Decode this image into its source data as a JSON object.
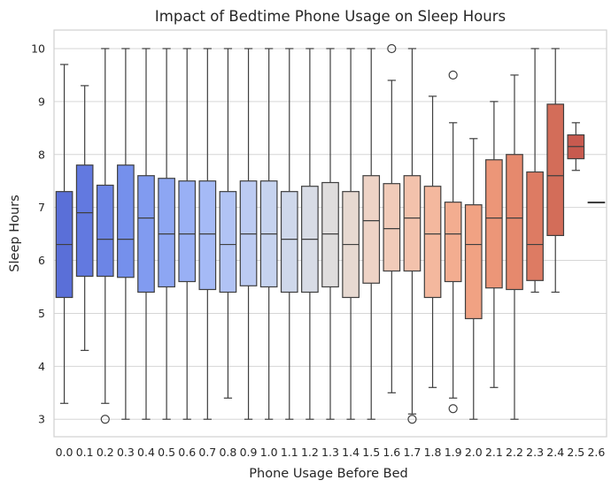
{
  "chart_data": {
    "type": "box",
    "title": "Impact of Bedtime Phone Usage on Sleep Hours",
    "xlabel": "Phone Usage Before Bed",
    "ylabel": "Sleep Hours",
    "ylim": [
      2.67,
      10.35
    ],
    "yticks": [
      3,
      4,
      5,
      6,
      7,
      8,
      9,
      10
    ],
    "grid": true,
    "palette": "coolwarm",
    "categories": [
      "0.0",
      "0.1",
      "0.2",
      "0.3",
      "0.4",
      "0.5",
      "0.6",
      "0.7",
      "0.8",
      "0.9",
      "1.0",
      "1.1",
      "1.2",
      "1.3",
      "1.4",
      "1.5",
      "1.6",
      "1.7",
      "1.8",
      "1.9",
      "2.0",
      "2.1",
      "2.2",
      "2.3",
      "2.4",
      "2.5",
      "2.6"
    ],
    "boxes": [
      {
        "category": "0.0",
        "q1": 5.3,
        "median": 6.3,
        "q3": 7.3,
        "whisker_low": 3.3,
        "whisker_high": 9.7,
        "outliers": [],
        "color": "#5a6fd8"
      },
      {
        "category": "0.1",
        "q1": 5.7,
        "median": 6.9,
        "q3": 7.8,
        "whisker_low": 4.3,
        "whisker_high": 9.3,
        "outliers": [],
        "color": "#6279e0"
      },
      {
        "category": "0.2",
        "q1": 5.7,
        "median": 6.4,
        "q3": 7.42,
        "whisker_low": 3.3,
        "whisker_high": 10.0,
        "outliers": [
          3.0
        ],
        "color": "#6c85e6"
      },
      {
        "category": "0.3",
        "q1": 5.68,
        "median": 6.4,
        "q3": 7.8,
        "whisker_low": 3.0,
        "whisker_high": 10.0,
        "outliers": [],
        "color": "#7590ec"
      },
      {
        "category": "0.4",
        "q1": 5.4,
        "median": 6.8,
        "q3": 7.6,
        "whisker_low": 3.0,
        "whisker_high": 10.0,
        "outliers": [],
        "color": "#819bf0"
      },
      {
        "category": "0.5",
        "q1": 5.5,
        "median": 6.5,
        "q3": 7.55,
        "whisker_low": 3.0,
        "whisker_high": 10.0,
        "outliers": [],
        "color": "#8da6f3"
      },
      {
        "category": "0.6",
        "q1": 5.6,
        "median": 6.5,
        "q3": 7.5,
        "whisker_low": 3.0,
        "whisker_high": 10.0,
        "outliers": [],
        "color": "#99b0f5"
      },
      {
        "category": "0.7",
        "q1": 5.45,
        "median": 6.5,
        "q3": 7.5,
        "whisker_low": 3.0,
        "whisker_high": 10.0,
        "outliers": [],
        "color": "#a5baf6"
      },
      {
        "category": "0.8",
        "q1": 5.4,
        "median": 6.3,
        "q3": 7.3,
        "whisker_low": 3.4,
        "whisker_high": 10.0,
        "outliers": [],
        "color": "#b1c3f5"
      },
      {
        "category": "0.9",
        "q1": 5.52,
        "median": 6.5,
        "q3": 7.5,
        "whisker_low": 3.0,
        "whisker_high": 10.0,
        "outliers": [],
        "color": "#bccbf2"
      },
      {
        "category": "1.0",
        "q1": 5.5,
        "median": 6.5,
        "q3": 7.5,
        "whisker_low": 3.0,
        "whisker_high": 10.0,
        "outliers": [],
        "color": "#c6d3ef"
      },
      {
        "category": "1.1",
        "q1": 5.4,
        "median": 6.4,
        "q3": 7.3,
        "whisker_low": 3.0,
        "whisker_high": 10.0,
        "outliers": [],
        "color": "#cfd8eb"
      },
      {
        "category": "1.2",
        "q1": 5.4,
        "median": 6.4,
        "q3": 7.4,
        "whisker_low": 3.0,
        "whisker_high": 10.0,
        "outliers": [],
        "color": "#d8dce6"
      },
      {
        "category": "1.3",
        "q1": 5.5,
        "median": 6.5,
        "q3": 7.47,
        "whisker_low": 3.0,
        "whisker_high": 10.0,
        "outliers": [],
        "color": "#dfdddd"
      },
      {
        "category": "1.4",
        "q1": 5.3,
        "median": 6.3,
        "q3": 7.3,
        "whisker_low": 3.0,
        "whisker_high": 10.0,
        "outliers": [],
        "color": "#e7d9d1"
      },
      {
        "category": "1.5",
        "q1": 5.57,
        "median": 6.75,
        "q3": 7.6,
        "whisker_low": 3.0,
        "whisker_high": 10.0,
        "outliers": [],
        "color": "#eed3c6"
      },
      {
        "category": "1.6",
        "q1": 5.8,
        "median": 6.6,
        "q3": 7.45,
        "whisker_low": 3.5,
        "whisker_high": 9.4,
        "outliers": [
          10.0
        ],
        "color": "#f1cbb9"
      },
      {
        "category": "1.7",
        "q1": 5.8,
        "median": 6.8,
        "q3": 7.6,
        "whisker_low": 3.1,
        "whisker_high": 10.0,
        "outliers": [
          3.0
        ],
        "color": "#f3c2ac"
      },
      {
        "category": "1.8",
        "q1": 5.3,
        "median": 6.5,
        "q3": 7.4,
        "whisker_low": 3.6,
        "whisker_high": 9.1,
        "outliers": [],
        "color": "#f4b89e"
      },
      {
        "category": "1.9",
        "q1": 5.6,
        "median": 6.5,
        "q3": 7.1,
        "whisker_low": 3.4,
        "whisker_high": 8.6,
        "outliers": [
          9.5,
          3.2
        ],
        "color": "#f3ad90"
      },
      {
        "category": "2.0",
        "q1": 4.9,
        "median": 6.3,
        "q3": 7.05,
        "whisker_low": 3.0,
        "whisker_high": 8.3,
        "outliers": [],
        "color": "#f1a283"
      },
      {
        "category": "2.1",
        "q1": 5.48,
        "median": 6.8,
        "q3": 7.9,
        "whisker_low": 3.6,
        "whisker_high": 9.0,
        "outliers": [],
        "color": "#ec9678"
      },
      {
        "category": "2.2",
        "q1": 5.45,
        "median": 6.8,
        "q3": 8.0,
        "whisker_low": 3.0,
        "whisker_high": 9.5,
        "outliers": [],
        "color": "#e6896d"
      },
      {
        "category": "2.3",
        "q1": 5.62,
        "median": 6.3,
        "q3": 7.67,
        "whisker_low": 5.4,
        "whisker_high": 10.0,
        "outliers": [],
        "color": "#dd7b63"
      },
      {
        "category": "2.4",
        "q1": 6.47,
        "median": 7.6,
        "q3": 8.95,
        "whisker_low": 5.4,
        "whisker_high": 10.0,
        "outliers": [],
        "color": "#d36d59"
      },
      {
        "category": "2.5",
        "q1": 7.92,
        "median": 8.15,
        "q3": 8.37,
        "whisker_low": 7.7,
        "whisker_high": 8.6,
        "outliers": [],
        "color": "#c85a4f"
      },
      {
        "category": "2.6",
        "q1": 7.1,
        "median": 7.1,
        "q3": 7.1,
        "whisker_low": 7.1,
        "whisker_high": 7.1,
        "outliers": [],
        "color": "#b8433f"
      }
    ]
  }
}
